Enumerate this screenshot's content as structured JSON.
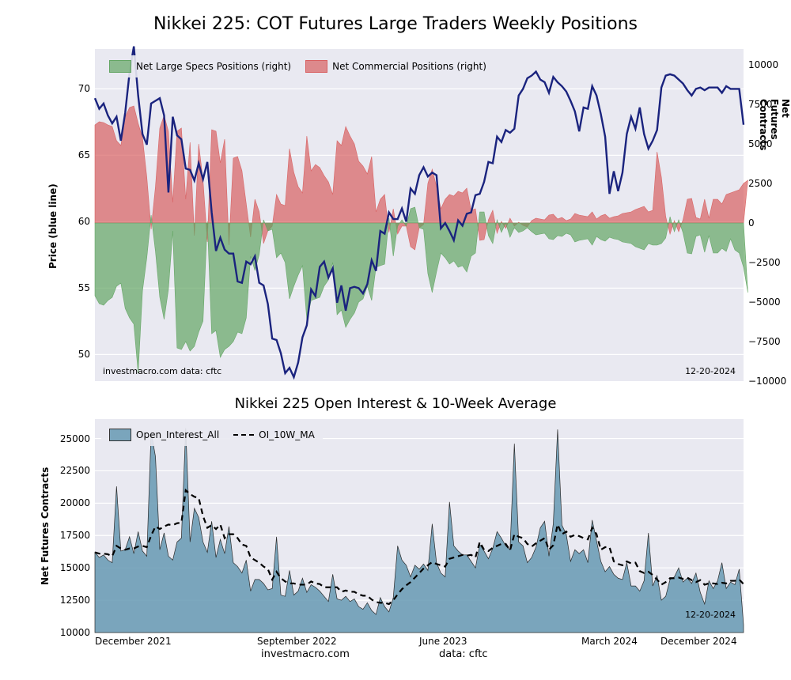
{
  "main_title": "Nikkei 225: COT Futures Large Traders Weekly Positions",
  "sub_title": "Nikkei 225 Open Interest & 10-Week Average",
  "top_chart": {
    "type": "combo-area-line",
    "background_color": "#e9e9f1",
    "grid_color": "#ffffff",
    "left_axis": {
      "label": "Price (blue line)",
      "min": 48,
      "max": 73,
      "ticks": [
        50,
        55,
        60,
        65,
        70
      ],
      "fontsize": 12
    },
    "right_axis": {
      "label": "Net Futures Contracts",
      "min": -10000,
      "max": 11000,
      "ticks": [
        -10000,
        -7500,
        -5000,
        -2500,
        0,
        2500,
        5000,
        7500,
        10000
      ],
      "fontsize": 12
    },
    "x_axis": {
      "labels": [
        "December 2021",
        "September 2022",
        "June 2023",
        "March 2024",
        "December 2024"
      ],
      "positions": [
        0,
        0.25,
        0.5,
        0.75,
        1.0
      ]
    },
    "series_specs": {
      "color": "#5fa35f",
      "opacity": 0.68,
      "label": "Net Large Specs Positions (right)"
    },
    "series_comm": {
      "color": "#d75c5c",
      "opacity": 0.68,
      "label": "Net Commercial Positions (right)"
    },
    "series_price": {
      "color": "#1a237e",
      "width": 2.4
    },
    "specs_data": [
      -4600,
      -5100,
      -5200,
      -4900,
      -4700,
      -4000,
      -3800,
      -5400,
      -6000,
      -6400,
      -9500,
      -4300,
      -2200,
      500,
      -1800,
      -4700,
      -6100,
      -4200,
      -500,
      -7900,
      -8000,
      -7500,
      -8100,
      -7800,
      -6900,
      -6200,
      100,
      -7000,
      -6800,
      -8500,
      -8000,
      -7800,
      -7500,
      -6900,
      -7000,
      -6000,
      -2100,
      -3000,
      -2000,
      200,
      -500,
      -400,
      -2200,
      -1900,
      -2500,
      -4800,
      -4000,
      -3300,
      -2700,
      -6100,
      -4900,
      -4800,
      -4700,
      -4000,
      -3600,
      -2500,
      -5800,
      -5500,
      -6600,
      -6100,
      -5700,
      -5000,
      -4800,
      -4000,
      -4900,
      -2800,
      -2700,
      -2600,
      300,
      -2100,
      -200,
      200,
      -200,
      900,
      1000,
      -300,
      -400,
      -3200,
      -4400,
      -3100,
      -1900,
      -2200,
      -2600,
      -2400,
      -2800,
      -2700,
      -3100,
      -2100,
      -1900,
      700,
      700,
      -800,
      -1300,
      200,
      -600,
      0,
      -900,
      -300,
      -600,
      -500,
      -300,
      -550,
      -750,
      -700,
      -650,
      -1000,
      -1050,
      -800,
      -850,
      -650,
      -750,
      -1200,
      -1100,
      -1050,
      -1000,
      -1400,
      -850,
      -1050,
      -1150,
      -900,
      -1000,
      -1050,
      -1200,
      -1250,
      -1300,
      -1500,
      -1600,
      -1700,
      -1300,
      -1400,
      -1400,
      -1300,
      -950,
      400,
      -550,
      200,
      -620,
      -1900,
      -1950,
      -850,
      -750,
      -1850,
      -800,
      -1900,
      -1900,
      -1600,
      -1800,
      -1000,
      -1700,
      -1900,
      -2800,
      -4400
    ],
    "comm_data": [
      6200,
      6400,
      6350,
      6200,
      6100,
      5200,
      4900,
      6700,
      7300,
      7400,
      6300,
      5400,
      2900,
      -400,
      2300,
      6000,
      6800,
      5800,
      1300,
      5800,
      6000,
      1500,
      5100,
      -800,
      5000,
      2700,
      -1200,
      5900,
      5800,
      3800,
      5300,
      -1400,
      4100,
      4200,
      3300,
      1200,
      -900,
      1500,
      700,
      -1300,
      -500,
      -200,
      1800,
      1200,
      1100,
      4700,
      3200,
      2300,
      1900,
      5500,
      3300,
      3700,
      3500,
      3000,
      2600,
      1800,
      5200,
      4900,
      6100,
      5500,
      5000,
      3900,
      3600,
      3100,
      4200,
      700,
      1500,
      1800,
      -600,
      900,
      -700,
      -200,
      -200,
      -1500,
      -1700,
      -300,
      -100,
      2500,
      3400,
      2300,
      900,
      1500,
      1800,
      1700,
      2000,
      1900,
      2200,
      800,
      900,
      -1100,
      -1050,
      200,
      800,
      -650,
      100,
      -350,
      300,
      -200,
      50,
      -150,
      -250,
      150,
      300,
      250,
      200,
      500,
      550,
      250,
      350,
      150,
      250,
      600,
      500,
      450,
      400,
      700,
      250,
      450,
      550,
      300,
      400,
      450,
      600,
      650,
      700,
      850,
      950,
      1050,
      700,
      800,
      4500,
      2900,
      400,
      -700,
      150,
      -550,
      200,
      1500,
      1550,
      350,
      250,
      1500,
      300,
      1500,
      1500,
      1200,
      1800,
      1900,
      2000,
      2100,
      2500,
      2700
    ],
    "price_data": [
      69.3,
      68.5,
      68.9,
      68.0,
      67.4,
      67.9,
      66.1,
      68.2,
      71.2,
      73.2,
      69.5,
      66.6,
      65.8,
      68.9,
      69.1,
      69.3,
      68.0,
      62.2,
      67.9,
      66.5,
      66.2,
      64.0,
      63.9,
      63.1,
      64.4,
      63.2,
      64.5,
      60.7,
      57.8,
      58.8,
      57.9,
      57.6,
      57.6,
      55.5,
      55.4,
      57.0,
      56.8,
      57.4,
      55.4,
      55.2,
      53.8,
      51.2,
      51.1,
      50.1,
      48.6,
      49.0,
      48.3,
      49.4,
      51.3,
      52.2,
      54.9,
      54.4,
      56.6,
      57.0,
      55.8,
      56.5,
      53.9,
      55.2,
      53.3,
      55.0,
      55.1,
      55.0,
      54.6,
      55.3,
      57.1,
      56.3,
      59.3,
      59.1,
      60.7,
      60.2,
      60.2,
      61.0,
      60.0,
      62.5,
      62.1,
      63.5,
      64.1,
      63.4,
      63.7,
      63.5,
      59.5,
      59.9,
      59.3,
      58.6,
      60.1,
      59.7,
      60.6,
      60.7,
      62.0,
      62.1,
      63.0,
      64.5,
      64.4,
      66.4,
      66.0,
      66.9,
      66.7,
      67.0,
      69.5,
      70.0,
      70.8,
      71.0,
      71.3,
      70.7,
      70.5,
      69.7,
      70.9,
      70.5,
      70.2,
      69.8,
      69.1,
      68.3,
      66.8,
      68.6,
      68.5,
      70.2,
      69.5,
      68.1,
      66.4,
      62.1,
      63.8,
      62.3,
      63.7,
      66.6,
      67.9,
      67.0,
      68.6,
      66.6,
      65.5,
      66.1,
      66.9,
      70.1,
      71.0,
      71.1,
      71.0,
      70.7,
      70.4,
      69.9,
      69.5,
      70.0,
      70.1,
      69.9,
      70.1,
      70.1,
      70.1,
      69.7,
      70.2,
      70.0,
      70.0,
      70.0,
      67.3
    ],
    "watermark_left": "investmacro.com   data: cftc",
    "date_annot": "12-20-2024"
  },
  "bottom_chart": {
    "type": "area-line",
    "background_color": "#e9e9f1",
    "grid_color": "#ffffff",
    "y_axis": {
      "label": "Net Futures Contracts",
      "min": 10000,
      "max": 26500,
      "ticks": [
        10000,
        12500,
        15000,
        17500,
        20000,
        22500,
        25000
      ],
      "fontsize": 12
    },
    "x_axis": {
      "labels": [
        "December 2021",
        "September 2022",
        "June 2023",
        "March 2024",
        "December 2024"
      ],
      "positions": [
        0,
        0.25,
        0.5,
        0.75,
        1.0
      ]
    },
    "series_oi": {
      "color": "#6699b3",
      "opacity": 0.85,
      "border_color": "#000000",
      "label": "Open_Interest_All"
    },
    "series_ma": {
      "color": "#000000",
      "dash": true,
      "width": 2.2,
      "label": "OI_10W_MA"
    },
    "oi_data": [
      16200,
      15800,
      16000,
      15600,
      15400,
      21300,
      16300,
      16400,
      17400,
      16100,
      17800,
      16300,
      15900,
      25500,
      23600,
      16400,
      17700,
      15900,
      15600,
      17000,
      17300,
      25800,
      17000,
      19600,
      18900,
      17000,
      16200,
      18600,
      15800,
      17200,
      16100,
      18200,
      15400,
      15100,
      14600,
      15600,
      13200,
      14100,
      14100,
      13800,
      13300,
      13400,
      17400,
      12900,
      12800,
      14800,
      12900,
      13200,
      14200,
      13100,
      13700,
      13500,
      13200,
      12800,
      12400,
      14500,
      12600,
      12500,
      12800,
      12400,
      12600,
      12000,
      11800,
      12300,
      11700,
      11400,
      12700,
      12000,
      11600,
      12700,
      16700,
      15600,
      15200,
      14300,
      15200,
      14900,
      15300,
      14800,
      18400,
      15400,
      14600,
      14300,
      20100,
      16700,
      16300,
      16000,
      16000,
      15500,
      15000,
      16800,
      16300,
      15700,
      16500,
      17800,
      17300,
      16700,
      16400,
      24600,
      17000,
      16700,
      15400,
      15800,
      16600,
      18100,
      18600,
      15900,
      18400,
      25700,
      18300,
      17600,
      15500,
      16400,
      16100,
      16400,
      15400,
      18700,
      17100,
      15500,
      14700,
      15100,
      14500,
      14200,
      14100,
      15400,
      13600,
      13600,
      13200,
      14000,
      17700,
      13600,
      14400,
      12500,
      12800,
      14100,
      14300,
      15000,
      13900,
      14200,
      13800,
      14600,
      13100,
      12200,
      14000,
      13400,
      14000,
      15400,
      13400,
      13900,
      13700,
      14900,
      10600
    ],
    "ma_data": [
      16200,
      16100,
      16100,
      16050,
      15900,
      16700,
      16500,
      16400,
      16500,
      16500,
      16650,
      16700,
      16600,
      17500,
      18200,
      18000,
      18200,
      18350,
      18300,
      18450,
      18500,
      21000,
      20700,
      20500,
      20400,
      19000,
      18100,
      18300,
      18000,
      18350,
      17300,
      17600,
      17600,
      17300,
      16800,
      16700,
      15800,
      15600,
      15400,
      15100,
      14900,
      14100,
      14700,
      14200,
      13950,
      13800,
      13800,
      13700,
      13700,
      13700,
      13950,
      13800,
      13750,
      13500,
      13500,
      13500,
      13500,
      13150,
      13250,
      13150,
      13150,
      12950,
      12850,
      12850,
      12550,
      12350,
      12300,
      12300,
      12200,
      12500,
      12950,
      13350,
      13650,
      13900,
      14250,
      14600,
      14950,
      15200,
      15450,
      15300,
      15200,
      15100,
      15700,
      15800,
      15900,
      16000,
      15950,
      16000,
      15800,
      17000,
      16400,
      16300,
      16550,
      16700,
      16850,
      16850,
      16350,
      17600,
      17400,
      17300,
      16850,
      16650,
      16900,
      17100,
      17300,
      16400,
      16750,
      18350,
      17600,
      17800,
      17400,
      17550,
      17450,
      17300,
      17200,
      18100,
      17600,
      16400,
      16600,
      16600,
      15500,
      15300,
      15200,
      15500,
      15350,
      15400,
      14750,
      14600,
      14700,
      14450,
      14100,
      13700,
      13900,
      14200,
      14200,
      14250,
      14150,
      14250,
      14050,
      13900,
      14050,
      13700,
      13800,
      13800,
      13750,
      13850,
      13800,
      14000,
      14000,
      14100,
      13750
    ],
    "date_annot": "12-20-2024",
    "footer_left": "investmacro.com",
    "footer_right": "data: cftc"
  }
}
